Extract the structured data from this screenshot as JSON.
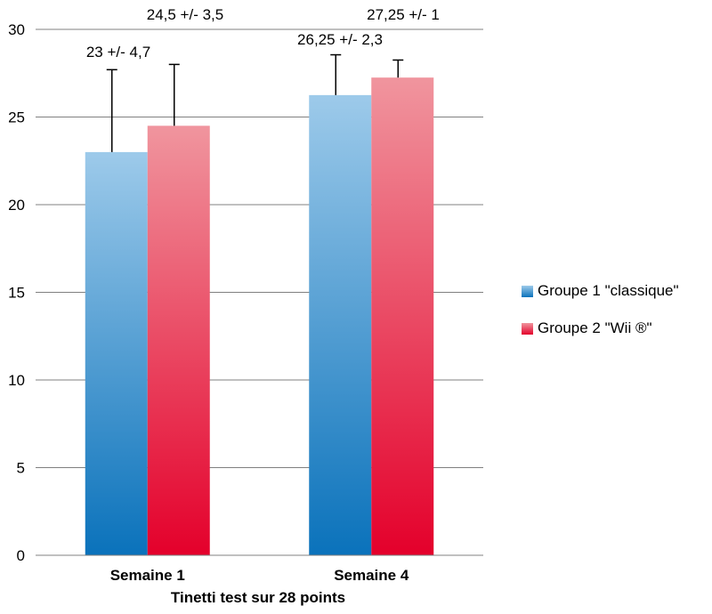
{
  "chart_data": {
    "type": "bar",
    "xlabel": "Tinetti test sur 28 points",
    "ylabel": "",
    "ylim": [
      0,
      30
    ],
    "yticks": [
      0,
      5,
      10,
      15,
      20,
      25,
      30
    ],
    "grid": true,
    "legend_position": "right",
    "categories": [
      "Semaine 1",
      "Semaine 4"
    ],
    "series": [
      {
        "name": "Groupe 1 \"classique\"",
        "values": [
          23,
          26.25
        ],
        "errors": [
          4.7,
          2.3
        ],
        "labels": [
          "23 +/- 4,7",
          "26,25 +/- 2,3"
        ],
        "color_top": "#9dcaea",
        "color_bottom": "#0a72bb"
      },
      {
        "name": "Groupe 2 \"Wii ®\"",
        "values": [
          24.5,
          27.25
        ],
        "errors": [
          3.5,
          1
        ],
        "labels": [
          "24,5 +/- 3,5",
          "27,25 +/- 1"
        ],
        "color_top": "#f0959e",
        "color_bottom": "#e4002b"
      }
    ]
  }
}
